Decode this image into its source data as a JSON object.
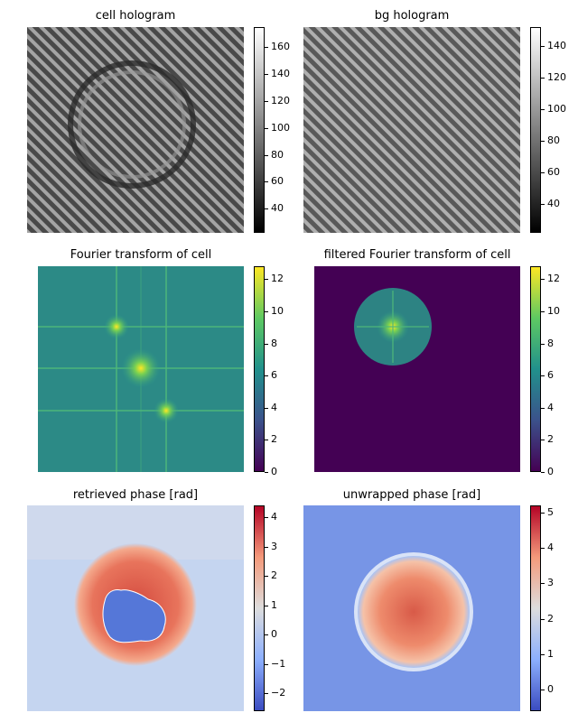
{
  "chart_data": [
    {
      "type": "heatmap",
      "title": "cell hologram",
      "colormap": "gray",
      "colorbar_ticks": [
        40,
        60,
        80,
        100,
        120,
        140,
        160
      ],
      "colorbar_range": [
        22,
        175
      ]
    },
    {
      "type": "heatmap",
      "title": "bg hologram",
      "colormap": "gray",
      "colorbar_ticks": [
        40,
        60,
        80,
        100,
        120,
        140
      ],
      "colorbar_range": [
        22,
        152
      ]
    },
    {
      "type": "heatmap",
      "title": "Fourier transform of cell",
      "colormap": "viridis",
      "colorbar_ticks": [
        0,
        2,
        4,
        6,
        8,
        10,
        12
      ],
      "colorbar_range": [
        0,
        12.8
      ]
    },
    {
      "type": "heatmap",
      "title": "filtered Fourier transform of cell",
      "colormap": "viridis",
      "colorbar_ticks": [
        0,
        2,
        4,
        6,
        8,
        10,
        12
      ],
      "colorbar_range": [
        0,
        12.8
      ]
    },
    {
      "type": "heatmap",
      "title": "retrieved phase [rad]",
      "colormap": "coolwarm",
      "colorbar_ticks": [
        -2,
        -1,
        0,
        1,
        2,
        3,
        4
      ],
      "colorbar_range": [
        -2.6,
        4.4
      ]
    },
    {
      "type": "heatmap",
      "title": "unwrapped phase [rad]",
      "colormap": "coolwarm",
      "colorbar_ticks": [
        0,
        1,
        2,
        3,
        4,
        5
      ],
      "colorbar_range": [
        -0.6,
        5.2
      ]
    }
  ]
}
